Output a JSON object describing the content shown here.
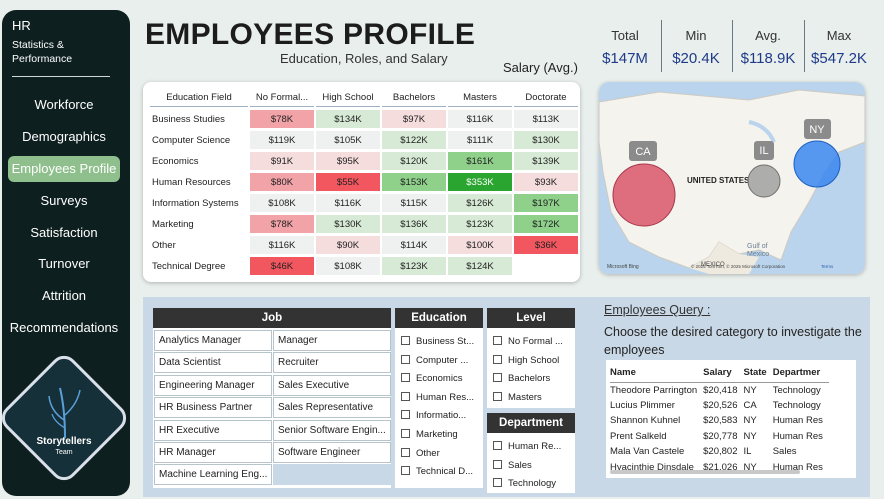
{
  "sidebar": {
    "title": "HR",
    "subtitle_line1": "Statistics &",
    "subtitle_line2": "Performance",
    "items": [
      {
        "label": "Workforce"
      },
      {
        "label": "Demographics"
      },
      {
        "label": "Employees Profile"
      },
      {
        "label": "Surveys"
      },
      {
        "label": "Satisfaction"
      },
      {
        "label": "Turnover"
      },
      {
        "label": "Attrition"
      },
      {
        "label": "Recommendations"
      }
    ],
    "active_index": 2,
    "logo_text": "Storytellers",
    "logo_subtext": "Team"
  },
  "header": {
    "title": "EMPLOYEES PROFILE",
    "subtitle": "Education, Roles, and Salary"
  },
  "kpis": [
    {
      "label": "Total",
      "value": "$147M"
    },
    {
      "label": "Min",
      "value": "$20.4K"
    },
    {
      "label": "Avg.",
      "value": "$118.9K"
    },
    {
      "label": "Max",
      "value": "$547.2K"
    }
  ],
  "matrix": {
    "label": "Salary (Avg.)",
    "corner": "Education Field",
    "columns": [
      "No Formal...",
      "High School",
      "Bachelors",
      "Masters",
      "Doctorate"
    ],
    "rows": [
      {
        "field": "Business Studies",
        "cells": [
          "$78K",
          "$134K",
          "$97K",
          "$116K",
          "$113K"
        ]
      },
      {
        "field": "Computer Science",
        "cells": [
          "$119K",
          "$105K",
          "$122K",
          "$111K",
          "$130K"
        ]
      },
      {
        "field": "Economics",
        "cells": [
          "$91K",
          "$95K",
          "$120K",
          "$161K",
          "$139K"
        ]
      },
      {
        "field": "Human Resources",
        "cells": [
          "$80K",
          "$55K",
          "$153K",
          "$353K",
          "$93K"
        ]
      },
      {
        "field": "Information Systems",
        "cells": [
          "$108K",
          "$116K",
          "$115K",
          "$126K",
          "$197K"
        ]
      },
      {
        "field": "Marketing",
        "cells": [
          "$78K",
          "$130K",
          "$136K",
          "$123K",
          "$172K"
        ]
      },
      {
        "field": "Other",
        "cells": [
          "$116K",
          "$90K",
          "$114K",
          "$100K",
          "$36K"
        ]
      },
      {
        "field": "Technical Degree",
        "cells": [
          "$46K",
          "$108K",
          "$123K",
          "$124K",
          ""
        ]
      }
    ],
    "colors": {
      "red_dark": "#f2575f",
      "red_mid": "#f2a3a8",
      "red_light": "#f5dcdd",
      "green_light": "#d7ead6",
      "green_mid": "#8fd18b",
      "green_dark": "#2aa52f",
      "neutral": "#eef1f0"
    }
  },
  "map": {
    "bubbles": [
      {
        "label": "CA",
        "color": "#d9566a"
      },
      {
        "label": "IL",
        "color": "#a0a0a0"
      },
      {
        "label": "NY",
        "color": "#3a86f0"
      }
    ],
    "country_label": "UNITED STATES",
    "gulf_label_1": "Gulf of",
    "gulf_label_2": "Mexico",
    "mexico_label": "MEXICO",
    "attribution": "© 2025 TomTom, © 2025 Microsoft Corporation",
    "terms": "Terms",
    "brand": "Microsoft Bing"
  },
  "slicers": {
    "job": {
      "header": "Job",
      "items": [
        [
          "Analytics Manager",
          "Manager"
        ],
        [
          "Data Scientist",
          "Recruiter"
        ],
        [
          "Engineering Manager",
          "Sales Executive"
        ],
        [
          "HR Business Partner",
          "Sales Representative"
        ],
        [
          "HR Executive",
          "Senior Software Engin..."
        ],
        [
          "HR Manager",
          "Software Engineer"
        ],
        [
          "Machine Learning Eng...",
          ""
        ]
      ]
    },
    "education": {
      "header": "Education",
      "items": [
        "Business St...",
        "Computer ...",
        "Economics",
        "Human Res...",
        "Informatio...",
        "Marketing",
        "Other",
        "Technical D..."
      ]
    },
    "level": {
      "header": "Level",
      "items": [
        "No Formal ...",
        "High School",
        "Bachelors",
        "Masters"
      ]
    },
    "department": {
      "header": "Department",
      "items": [
        "Human Re...",
        "Sales",
        "Technology"
      ]
    }
  },
  "query": {
    "title": "Employees Query :",
    "description": "Choose the desired category to investigate the employees",
    "columns": [
      "Name",
      "Salary",
      "State",
      "Departmer"
    ],
    "rows": [
      [
        "Theodore Parrington",
        "$20,418",
        "NY",
        "Technology"
      ],
      [
        "Lucius Plimmer",
        "$20,526",
        "CA",
        "Technology"
      ],
      [
        "Shannon Kuhnel",
        "$20,583",
        "NY",
        "Human Res"
      ],
      [
        "Prent Salkeld",
        "$20,778",
        "NY",
        "Human Res"
      ],
      [
        "Mala Van Castele",
        "$20,802",
        "IL",
        "Sales"
      ],
      [
        "Hyacinthie Dinsdale",
        "$21,026",
        "NY",
        "Human Res"
      ]
    ]
  }
}
